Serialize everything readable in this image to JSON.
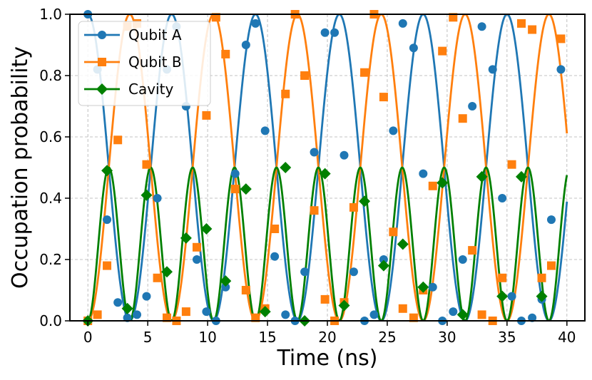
{
  "chart_data": {
    "type": "line",
    "xlabel": "Time (ns)",
    "ylabel": "Occupation probability",
    "xlim": [
      -1.5,
      41.5
    ],
    "ylim": [
      0.0,
      1.0
    ],
    "xticks": [
      0,
      5,
      10,
      15,
      20,
      25,
      30,
      35,
      40
    ],
    "yticks": [
      0.0,
      0.2,
      0.4,
      0.6,
      0.8,
      1.0
    ],
    "xtick_labels": [
      "0",
      "5",
      "10",
      "15",
      "20",
      "25",
      "30",
      "35",
      "40"
    ],
    "ytick_labels": [
      "0.0",
      "0.2",
      "0.4",
      "0.6",
      "0.8",
      "1.0"
    ],
    "grid": true,
    "legend_position": "top-left",
    "series": [
      {
        "name": "Qubit A",
        "color": "#1f77b4",
        "marker": "circle",
        "x": [
          0,
          0.8,
          1.6,
          2.5,
          3.3,
          4.1,
          4.9,
          5.8,
          6.6,
          7.4,
          8.2,
          9.1,
          9.9,
          10.7,
          11.5,
          12.3,
          13.2,
          14.0,
          14.8,
          15.6,
          16.5,
          17.3,
          18.1,
          18.9,
          19.8,
          20.6,
          21.4,
          22.2,
          23.1,
          23.9,
          24.7,
          25.5,
          26.3,
          27.2,
          28.0,
          28.8,
          29.6,
          30.5,
          31.3,
          32.1,
          32.9,
          33.8,
          34.6,
          35.4,
          36.2,
          37.1,
          37.9,
          38.7,
          39.5
        ],
        "y": [
          1.0,
          0.82,
          0.33,
          0.06,
          0.01,
          0.02,
          0.08,
          0.4,
          0.82,
          0.96,
          0.7,
          0.2,
          0.03,
          0.0,
          0.11,
          0.48,
          0.9,
          0.97,
          0.62,
          0.21,
          0.02,
          0.0,
          0.16,
          0.55,
          0.94,
          0.94,
          0.54,
          0.16,
          0.0,
          0.02,
          0.2,
          0.62,
          0.97,
          0.89,
          0.48,
          0.11,
          0.0,
          0.03,
          0.2,
          0.7,
          0.96,
          0.82,
          0.4,
          0.08,
          0.0,
          0.01,
          0.07,
          0.33,
          0.82
        ],
        "curve_period": 7.0
      },
      {
        "name": "Qubit B",
        "color": "#ff7f0e",
        "marker": "square",
        "x": [
          0,
          0.8,
          1.6,
          2.5,
          3.3,
          4.1,
          4.9,
          5.8,
          6.6,
          7.4,
          8.2,
          9.1,
          9.9,
          10.7,
          11.5,
          12.3,
          13.2,
          14.0,
          14.8,
          15.6,
          16.5,
          17.3,
          18.1,
          18.9,
          19.8,
          20.6,
          21.4,
          22.2,
          23.1,
          23.9,
          24.7,
          25.5,
          26.3,
          27.2,
          28.0,
          28.8,
          29.6,
          30.5,
          31.3,
          32.1,
          32.9,
          33.8,
          34.6,
          35.4,
          36.2,
          37.1,
          37.9,
          38.7,
          39.5
        ],
        "y": [
          0.0,
          0.02,
          0.18,
          0.59,
          0.96,
          0.97,
          0.51,
          0.14,
          0.01,
          0.0,
          0.03,
          0.24,
          0.67,
          0.99,
          0.87,
          0.43,
          0.1,
          0.01,
          0.04,
          0.3,
          0.74,
          1.0,
          0.8,
          0.36,
          0.07,
          0.0,
          0.06,
          0.37,
          0.81,
          1.0,
          0.73,
          0.29,
          0.04,
          0.01,
          0.1,
          0.44,
          0.88,
          0.99,
          0.66,
          0.23,
          0.02,
          0.0,
          0.14,
          0.51,
          0.97,
          0.95,
          0.14,
          0.18,
          0.92
        ],
        "curve_period": 7.0
      },
      {
        "name": "Cavity",
        "color": "#008000",
        "marker": "diamond",
        "x": [
          0,
          1.6,
          3.3,
          4.9,
          6.6,
          8.2,
          9.9,
          11.5,
          13.2,
          14.8,
          16.5,
          18.1,
          19.8,
          21.4,
          23.1,
          24.7,
          26.3,
          28.0,
          29.6,
          31.3,
          32.9,
          34.6,
          36.2,
          37.9
        ],
        "y": [
          0.0,
          0.49,
          0.04,
          0.41,
          0.16,
          0.27,
          0.3,
          0.13,
          0.43,
          0.03,
          0.5,
          0.0,
          0.48,
          0.05,
          0.39,
          0.18,
          0.25,
          0.11,
          0.45,
          0.02,
          0.47,
          0.08,
          0.47,
          0.08
        ],
        "curve_period": 3.5
      }
    ]
  }
}
